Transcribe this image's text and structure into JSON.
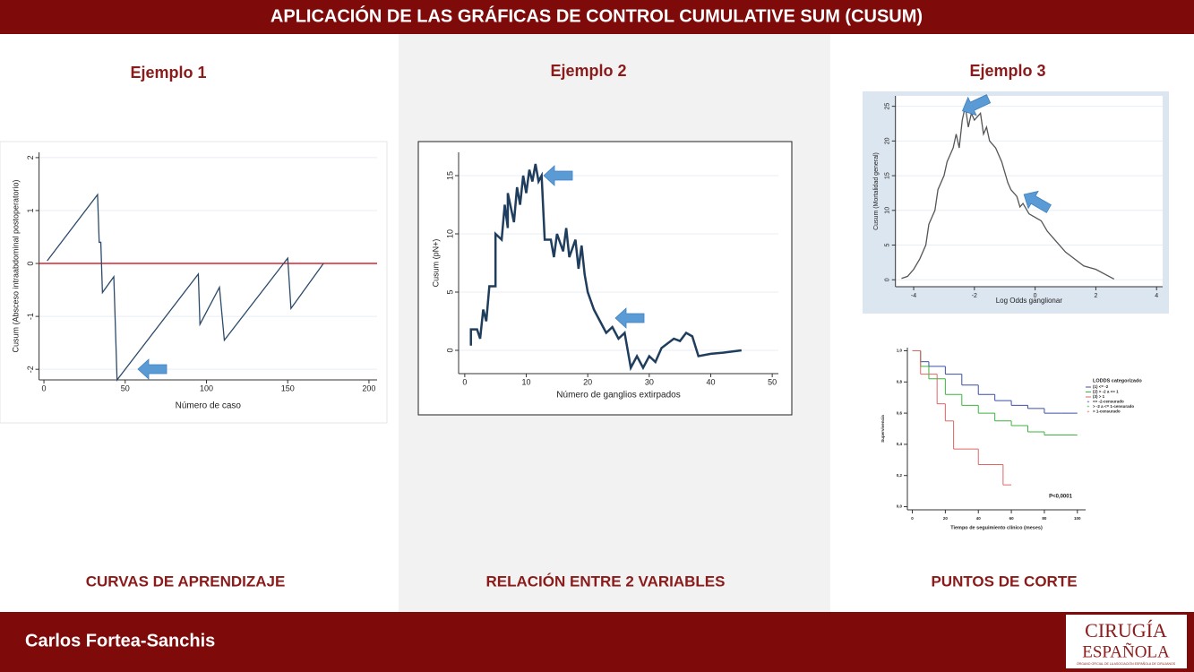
{
  "header": {
    "title": "APLICACIÓN DE LAS GRÁFICAS DE CONTROL CUMULATIVE SUM (CUSUM)"
  },
  "columns": [
    {
      "heading": "Ejemplo 1",
      "caption": "CURVAS DE APRENDIZAJE"
    },
    {
      "heading": "Ejemplo 2",
      "caption": "RELACIÓN ENTRE 2 VARIABLES"
    },
    {
      "heading": "Ejemplo 3",
      "caption": "PUNTOS DE CORTE"
    }
  ],
  "footer": {
    "author": "Carlos Fortea-Sanchis",
    "logo_line1": "CIRUGÍA",
    "logo_line2": "ESPAÑOLA",
    "logo_tagline": "ÓRGANO OFICIAL DE LA ASOCIACIÓN ESPAÑOLA DE CIRUJANOS"
  },
  "chart_data": [
    {
      "type": "line",
      "x_label": "Número de caso",
      "y_label": "Cusum (Absceso intraabdominal postoperatorio)",
      "xlim": [
        -3,
        205
      ],
      "ylim": [
        -2.2,
        2.1
      ],
      "xticks": [
        0,
        50,
        100,
        150,
        200
      ],
      "yticks": [
        -2,
        -1,
        0,
        1,
        2
      ],
      "grid": true,
      "reference_line": {
        "value": 0,
        "color": "#d9232e"
      },
      "series": [
        {
          "color": "#2d4a6b",
          "x": [
            2,
            33,
            34,
            35,
            36,
            43,
            45,
            95,
            96,
            108,
            111,
            150,
            152,
            172
          ],
          "values": [
            0.05,
            1.3,
            0.4,
            0.4,
            -0.55,
            -0.25,
            -2.2,
            -0.2,
            -1.15,
            -0.45,
            -1.45,
            0.1,
            -0.85,
            0
          ]
        }
      ]
    },
    {
      "type": "line",
      "x_label": "Número de ganglios extirpados",
      "y_label": "Cusum (pN+)",
      "xlim": [
        -1,
        51
      ],
      "ylim": [
        -2,
        17
      ],
      "xticks": [
        0,
        10,
        20,
        30,
        40,
        50
      ],
      "yticks": [
        0,
        5,
        10,
        15
      ],
      "grid": true,
      "series": [
        {
          "color": "#1f3d5c",
          "x": [
            1,
            1,
            2,
            2.5,
            3,
            3.5,
            4,
            5,
            5,
            6,
            6.5,
            7,
            7,
            8,
            8.5,
            9,
            9.5,
            10,
            10.5,
            11,
            11.5,
            12,
            12.5,
            13,
            14,
            14.5,
            15,
            16,
            16.5,
            17,
            18,
            18.5,
            19,
            19.5,
            20,
            21,
            22,
            23,
            24,
            25,
            26,
            26.5,
            27,
            28,
            29,
            30,
            31,
            32,
            34,
            35,
            36,
            37,
            38,
            40,
            42,
            45
          ],
          "values": [
            0.4,
            1.8,
            1.8,
            1,
            3.5,
            2.5,
            5.5,
            5.5,
            10,
            9.5,
            12.5,
            10.5,
            13.5,
            11,
            14,
            12.5,
            15,
            13.5,
            15.5,
            14.5,
            16,
            14.5,
            15,
            9.5,
            9.5,
            8,
            10,
            8.5,
            10.5,
            8,
            9.5,
            7,
            9,
            6.5,
            5,
            3.5,
            2.5,
            1.5,
            2,
            1,
            1.5,
            0,
            -1.5,
            -0.5,
            -1.5,
            -0.5,
            -1,
            0.2,
            1,
            0.8,
            1.5,
            1.2,
            -0.5,
            -0.3,
            -0.2,
            0
          ]
        }
      ]
    },
    {
      "type": "line",
      "x_label": "Log Odds ganglionar",
      "y_label": "Cusum (Mortalidad general)",
      "xlim": [
        -4.6,
        4.2
      ],
      "ylim": [
        -1,
        26.5
      ],
      "xticks": [
        -4,
        -2,
        0,
        2,
        4
      ],
      "yticks": [
        0,
        5,
        10,
        15,
        20,
        25
      ],
      "grid": true,
      "series": [
        {
          "color": "#555555",
          "x": [
            -4.4,
            -4.2,
            -4,
            -3.8,
            -3.6,
            -3.5,
            -3.3,
            -3.2,
            -3,
            -2.9,
            -2.7,
            -2.6,
            -2.5,
            -2.4,
            -2.3,
            -2.2,
            -2.1,
            -2,
            -1.8,
            -1.7,
            -1.6,
            -1.5,
            -1.3,
            -1.1,
            -0.9,
            -0.8,
            -0.6,
            -0.5,
            -0.4,
            -0.2,
            0,
            0.2,
            0.4,
            0.7,
            1,
            1.3,
            1.6,
            2,
            2.3,
            2.6
          ],
          "values": [
            0.2,
            0.5,
            1.5,
            3,
            5,
            8,
            10,
            13,
            15,
            17,
            19,
            21,
            19,
            23,
            25,
            22,
            24,
            23,
            24,
            21,
            22,
            20,
            19,
            17,
            14,
            13,
            12,
            10.5,
            11,
            9.5,
            9,
            8.5,
            7,
            5.5,
            4,
            3,
            2,
            1.5,
            0.8,
            0.1
          ]
        }
      ]
    },
    {
      "type": "step",
      "x_label": "Tiempo de seguimiento clínico (meses)",
      "y_label": "Supervivencia",
      "annotation": "P<0,0001",
      "legend_title": "LODDS categorizado",
      "legend_extra": [
        "<= -2-censurado",
        "> -2 a <= 1-censurado",
        "> 1-censurado"
      ],
      "xlim": [
        -3,
        105
      ],
      "ylim": [
        -0.02,
        1.02
      ],
      "xticks": [
        0,
        20,
        40,
        60,
        80,
        100
      ],
      "yticks": [
        {
          "value": 0,
          "label": "0,0"
        },
        {
          "value": 0.2,
          "label": "0,2"
        },
        {
          "value": 0.4,
          "label": "0,4"
        },
        {
          "value": 0.6,
          "label": "0,6"
        },
        {
          "value": 0.8,
          "label": "0,8"
        },
        {
          "value": 1,
          "label": "1,0"
        }
      ],
      "grid": false,
      "series": [
        {
          "name": "(1) <= -2",
          "color": "#3c4fa6",
          "x": [
            0,
            5,
            10,
            20,
            30,
            40,
            50,
            60,
            70,
            80,
            90,
            100
          ],
          "values": [
            1,
            0.93,
            0.9,
            0.85,
            0.78,
            0.72,
            0.68,
            0.65,
            0.63,
            0.6,
            0.6,
            0.6
          ]
        },
        {
          "name": "(2) > -2 a <= 1",
          "color": "#3cb43c",
          "x": [
            0,
            5,
            10,
            20,
            30,
            40,
            50,
            60,
            70,
            80,
            100
          ],
          "values": [
            1,
            0.9,
            0.82,
            0.72,
            0.65,
            0.6,
            0.55,
            0.52,
            0.48,
            0.46,
            0.46
          ]
        },
        {
          "name": "(3) > 1",
          "color": "#e06666",
          "x": [
            0,
            5,
            15,
            20,
            25,
            40,
            55,
            60
          ],
          "values": [
            1,
            0.85,
            0.66,
            0.55,
            0.37,
            0.27,
            0.14,
            0.14
          ]
        }
      ]
    }
  ]
}
